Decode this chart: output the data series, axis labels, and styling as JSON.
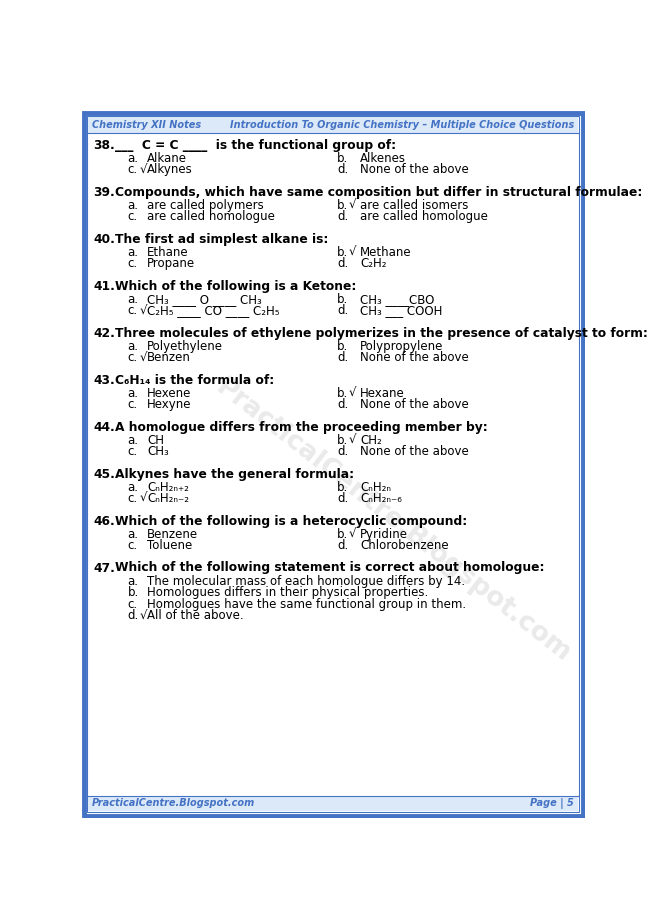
{
  "header_left": "Chemistry XII Notes",
  "header_right": "Introduction To Organic Chemistry – Multiple Choice Questions",
  "footer_left": "PracticalCentre.Blogspot.com",
  "footer_right": "Page | 5",
  "border_color": "#4472C4",
  "header_color": "#4472C4",
  "bg_color": "#ffffff",
  "watermark_text": "PracticalCentre.Blogspot.com",
  "questions": [
    {
      "num": "38.",
      "question": "___  C = C ____  is the functional group of:",
      "options": [
        {
          "label": "a.",
          "check": false,
          "text": "Alkane"
        },
        {
          "label": "b.",
          "check": false,
          "text": "Alkenes"
        },
        {
          "label": "c.",
          "check": true,
          "text": "Alkynes"
        },
        {
          "label": "d.",
          "check": false,
          "text": "None of the above"
        }
      ],
      "full_width": false
    },
    {
      "num": "39.",
      "question": "Compounds, which have same composition but differ in structural formulae:",
      "options": [
        {
          "label": "a.",
          "check": false,
          "text": "are called polymers"
        },
        {
          "label": "b.",
          "check": true,
          "text": "are called isomers"
        },
        {
          "label": "c.",
          "check": false,
          "text": "are called homologue"
        },
        {
          "label": "d.",
          "check": false,
          "text": "are called homologue"
        }
      ],
      "full_width": false
    },
    {
      "num": "40.",
      "question": "The first ad simplest alkane is:",
      "options": [
        {
          "label": "a.",
          "check": false,
          "text": "Ethane"
        },
        {
          "label": "b.",
          "check": true,
          "text": "Methane"
        },
        {
          "label": "c.",
          "check": false,
          "text": "Propane"
        },
        {
          "label": "d.",
          "check": false,
          "text": "C₂H₂"
        }
      ],
      "full_width": false
    },
    {
      "num": "41.",
      "question": "Which of the following is a Ketone:",
      "options": [
        {
          "label": "a.",
          "check": false,
          "text": "CH₃ ____ O ____ CH₃"
        },
        {
          "label": "b.",
          "check": false,
          "text": "CH₃ ____CBO"
        },
        {
          "label": "c.",
          "check": true,
          "text": "C₂H₅ ____ CO ____ C₂H₅"
        },
        {
          "label": "d.",
          "check": false,
          "text": "CH₃ ___ COOH"
        }
      ],
      "full_width": false
    },
    {
      "num": "42.",
      "question": "Three molecules of ethylene polymerizes in the presence of catalyst to form:",
      "options": [
        {
          "label": "a.",
          "check": false,
          "text": "Polyethylene"
        },
        {
          "label": "b.",
          "check": false,
          "text": "Polypropylene"
        },
        {
          "label": "c.",
          "check": true,
          "text": "Benzen"
        },
        {
          "label": "d.",
          "check": false,
          "text": "None of the above"
        }
      ],
      "full_width": false
    },
    {
      "num": "43.",
      "question": "C₆H₁₄ is the formula of:",
      "options": [
        {
          "label": "a.",
          "check": false,
          "text": "Hexene"
        },
        {
          "label": "b.",
          "check": true,
          "text": "Hexane"
        },
        {
          "label": "c.",
          "check": false,
          "text": "Hexyne"
        },
        {
          "label": "d.",
          "check": false,
          "text": "None of the above"
        }
      ],
      "full_width": false
    },
    {
      "num": "44.",
      "question": "A homologue differs from the proceeding member by:",
      "options": [
        {
          "label": "a.",
          "check": false,
          "text": "CH"
        },
        {
          "label": "b.",
          "check": true,
          "text": "CH₂"
        },
        {
          "label": "c.",
          "check": false,
          "text": "CH₃"
        },
        {
          "label": "d.",
          "check": false,
          "text": "None of the above"
        }
      ],
      "full_width": false
    },
    {
      "num": "45.",
      "question": "Alkynes have the general formula:",
      "options": [
        {
          "label": "a.",
          "check": false,
          "text": "CₙH₂ₙ₊₂"
        },
        {
          "label": "b.",
          "check": false,
          "text": "CₙH₂ₙ"
        },
        {
          "label": "c.",
          "check": true,
          "text": "CₙH₂ₙ₋₂"
        },
        {
          "label": "d.",
          "check": false,
          "text": "CₙH₂ₙ₋₆"
        }
      ],
      "full_width": false
    },
    {
      "num": "46.",
      "question": "Which of the following is a heterocyclic compound:",
      "options": [
        {
          "label": "a.",
          "check": false,
          "text": "Benzene"
        },
        {
          "label": "b.",
          "check": true,
          "text": "Pyridine"
        },
        {
          "label": "c.",
          "check": false,
          "text": "Toluene"
        },
        {
          "label": "d.",
          "check": false,
          "text": "Chlorobenzene"
        }
      ],
      "full_width": false
    },
    {
      "num": "47.",
      "question": "Which of the following statement is correct about homologue:",
      "options": [
        {
          "label": "a.",
          "check": false,
          "text": "The molecular mass of each homologue differs by 14."
        },
        {
          "label": "b.",
          "check": false,
          "text": "Homologues differs in their physical properties."
        },
        {
          "label": "c.",
          "check": false,
          "text": "Homologues have the same functional group in them."
        },
        {
          "label": "d.",
          "check": true,
          "text": "All of the above."
        }
      ],
      "full_width": true
    }
  ]
}
